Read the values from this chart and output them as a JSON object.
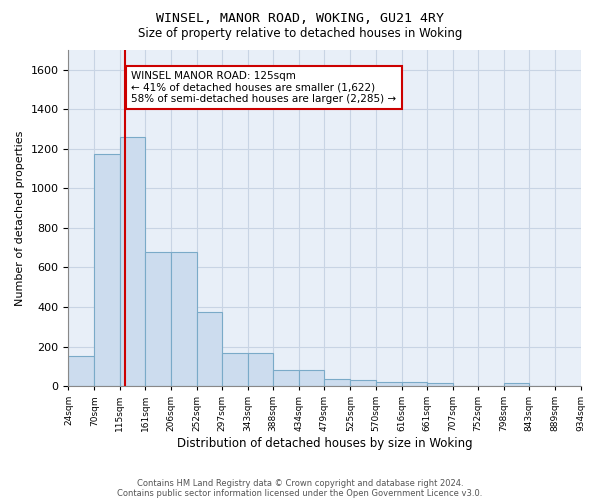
{
  "title1": "WINSEL, MANOR ROAD, WOKING, GU21 4RY",
  "title2": "Size of property relative to detached houses in Woking",
  "xlabel": "Distribution of detached houses by size in Woking",
  "ylabel": "Number of detached properties",
  "bar_color": "#ccdcee",
  "bar_edgecolor": "#7aaac8",
  "vline_x": 125,
  "vline_color": "#cc0000",
  "annotation_text": "WINSEL MANOR ROAD: 125sqm\n← 41% of detached houses are smaller (1,622)\n58% of semi-detached houses are larger (2,285) →",
  "annotation_box_edgecolor": "#cc0000",
  "bins": [
    24,
    70,
    115,
    161,
    206,
    252,
    297,
    343,
    388,
    434,
    479,
    525,
    570,
    616,
    661,
    707,
    752,
    798,
    843,
    889,
    934
  ],
  "bar_heights": [
    150,
    1175,
    1262,
    680,
    680,
    375,
    165,
    165,
    80,
    80,
    35,
    30,
    20,
    20,
    15,
    0,
    0,
    15,
    0,
    0
  ],
  "ylim": [
    0,
    1700
  ],
  "yticks": [
    0,
    200,
    400,
    600,
    800,
    1000,
    1200,
    1400,
    1600
  ],
  "grid_color": "#c8d4e4",
  "bg_color": "#e8eff8",
  "footer1": "Contains HM Land Registry data © Crown copyright and database right 2024.",
  "footer2": "Contains public sector information licensed under the Open Government Licence v3.0."
}
